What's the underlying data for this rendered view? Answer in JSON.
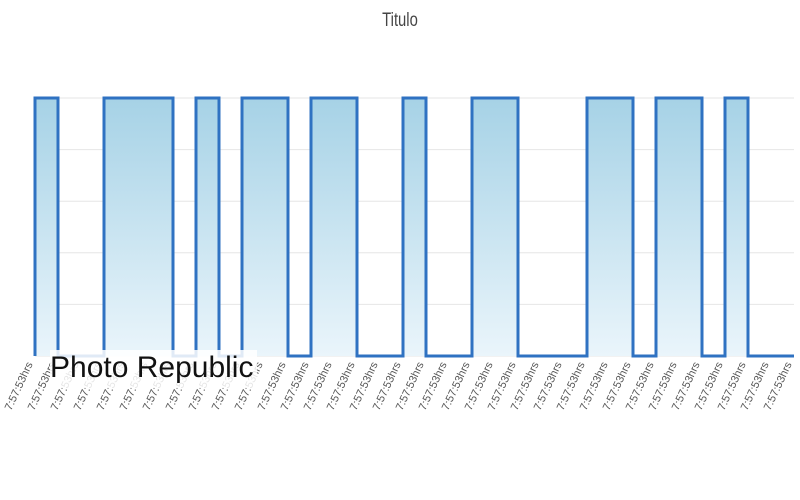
{
  "chart_data": {
    "type": "area",
    "title": "Titulo",
    "xlabel": "",
    "ylabel": "",
    "x": [
      "7:57:53hrs",
      "7:57:53hrs",
      "7:57:53hrs",
      "7:57:53hrs",
      "7:57:53hrs",
      "7:57:53hrs",
      "7:57:53hrs",
      "7:57:53hrs",
      "7:57:53hrs",
      "7:57:53hrs",
      "7:57:53hrs",
      "7:57:53hrs",
      "7:57:53hrs",
      "7:57:53hrs",
      "7:57:53hrs",
      "7:57:53hrs",
      "7:57:53hrs",
      "7:57:53hrs",
      "7:57:53hrs",
      "7:57:53hrs",
      "7:57:53hrs",
      "7:57:53hrs",
      "7:57:53hrs",
      "7:57:53hrs",
      "7:57:53hrs",
      "7:57:53hrs",
      "7:57:53hrs",
      "7:57:53hrs",
      "7:57:53hrs",
      "7:57:53hrs",
      "7:57:53hrs",
      "7:57:53hrs",
      "7:57:53hrs",
      "7:57:53hrs"
    ],
    "series": [
      {
        "values": [
          0,
          1,
          0,
          0,
          1,
          1,
          1,
          0,
          1,
          0,
          1,
          1,
          0,
          1,
          1,
          0,
          0,
          1,
          0,
          0,
          1,
          1,
          0,
          0,
          0,
          1,
          1,
          0,
          1,
          1,
          0,
          1,
          0,
          0
        ]
      }
    ],
    "step": "before",
    "ylim": [
      0,
      1
    ],
    "grid": true,
    "legend": "none",
    "y_tick_labels": "none",
    "tick_label_rotation_deg": -65,
    "colors": {
      "line": "#2f72c2",
      "fill_top": "#a6d2e6",
      "fill_bottom": "#eaf5fb",
      "grid": "#e6e6e6",
      "tick_text": "#555555"
    }
  },
  "watermark": "Photo Republic"
}
